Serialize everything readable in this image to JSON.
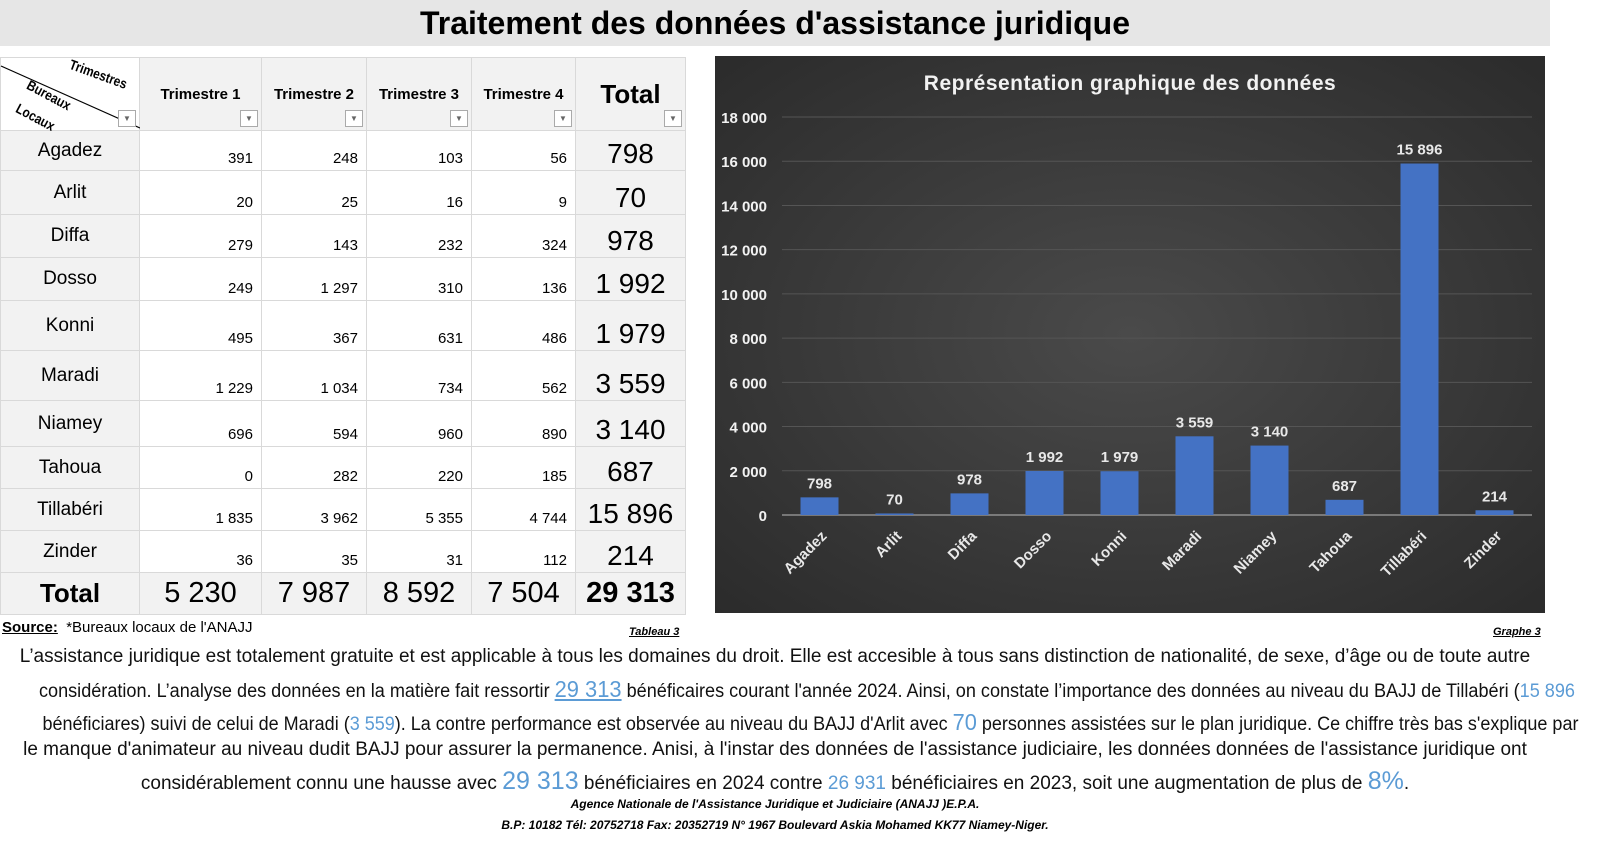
{
  "title": "Traitement des données d'assistance juridique",
  "table": {
    "corner": {
      "top": "Trimestres",
      "bottom1": "Bureaux",
      "bottom2": "Locaux"
    },
    "headers": [
      "Trimestre 1",
      "Trimestre 2",
      "Trimestre 3",
      "Trimestre 4",
      "Total"
    ],
    "rows": [
      {
        "name": "Agadez",
        "q": [
          "391",
          "248",
          "103",
          "56"
        ],
        "total": "798"
      },
      {
        "name": "Arlit",
        "q": [
          "20",
          "25",
          "16",
          "9"
        ],
        "total": "70"
      },
      {
        "name": "Diffa",
        "q": [
          "279",
          "143",
          "232",
          "324"
        ],
        "total": "978"
      },
      {
        "name": "Dosso",
        "q": [
          "249",
          "1 297",
          "310",
          "136"
        ],
        "total": "1 992"
      },
      {
        "name": "Konni",
        "q": [
          "495",
          "367",
          "631",
          "486"
        ],
        "total": "1 979"
      },
      {
        "name": "Maradi",
        "q": [
          "1 229",
          "1 034",
          "734",
          "562"
        ],
        "total": "3 559"
      },
      {
        "name": "Niamey",
        "q": [
          "696",
          "594",
          "960",
          "890"
        ],
        "total": "3 140"
      },
      {
        "name": "Tahoua",
        "q": [
          "0",
          "282",
          "220",
          "185"
        ],
        "total": "687"
      },
      {
        "name": "Tillabéri",
        "q": [
          "1 835",
          "3 962",
          "5 355",
          "4 744"
        ],
        "total": "15 896"
      },
      {
        "name": "Zinder",
        "q": [
          "36",
          "35",
          "31",
          "112"
        ],
        "total": "214"
      }
    ],
    "total_row": {
      "label": "Total",
      "q": [
        "5 230",
        "7 987",
        "8 592",
        "7 504"
      ],
      "total": "29 313"
    }
  },
  "source_label": "Source:",
  "source_text": "*Bureaux locaux de l'ANAJJ",
  "table_caption": "Tableau 3",
  "graph_caption": "Graphe 3",
  "chart_data": {
    "type": "bar",
    "title": "Représentation graphique des données",
    "categories": [
      "Agadez",
      "Arlit",
      "Diffa",
      "Dosso",
      "Konni",
      "Maradi",
      "Niamey",
      "Tahoua",
      "Tillabéri",
      "Zinder"
    ],
    "values": [
      798,
      70,
      978,
      1992,
      1979,
      3559,
      3140,
      687,
      15896,
      214
    ],
    "data_labels": [
      "798",
      "70",
      "978",
      "1 992",
      "1 979",
      "3 559",
      "3 140",
      "687",
      "15 896",
      "214"
    ],
    "ylim": [
      0,
      18000
    ],
    "yticks": [
      "0",
      "2 000",
      "4 000",
      "6 000",
      "8 000",
      "10 000",
      "12 000",
      "14 000",
      "16 000",
      "18 000"
    ],
    "grid": true,
    "bar_color": "#4472c4",
    "background": "#333333"
  },
  "paragraph": {
    "l1": "L’assistance juridique est totalement gratuite et est applicable à tous les domaines du droit. Elle est accesible à tous sans distinction de nationalité, de sexe, d’âge ou de toute autre",
    "l2a": "considération. L’analyse des données en la matière fait ressortir ",
    "l2b": "29 313",
    "l2c": " bénéficaires courant l'année 2024. Ainsi, on constate l’importance des données au niveau du BAJJ de Tillabéri (",
    "l2d": "15 896",
    "l3a": "bénéficiares) suivi de celui de Maradi (",
    "l3b": "3 559",
    "l3c": "). La contre performance est observée au niveau du BAJJ d'Arlit avec ",
    "l3d": "70",
    "l3e": " personnes assistées sur le plan juridique. Ce chiffre très bas s'explique par",
    "l4": "le manque  d'animateur au niveau dudit BAJJ pour assurer la permanence. Anisi, à l'instar des données de l'assistance judiciaire, les données données de l'assistance juridique ont",
    "l5a": "considérablement connu une hausse avec ",
    "l5b": "29 313",
    "l5c": " bénéficiaires en 2024 contre ",
    "l5d": "26 931",
    "l5e": " bénéficiaires en 2023, soit une augmentation de plus de ",
    "l5f": "8%",
    "l5g": "."
  },
  "footer": {
    "l1": "Agence Nationale de l'Assistance Juridique et Judiciaire (ANAJJ )E.P.A.",
    "l2": "B.P: 10182 Tél: 20752718 Fax: 20352719 N° 1967 Boulevard Askia Mohamed KK77 Niamey-Niger."
  }
}
